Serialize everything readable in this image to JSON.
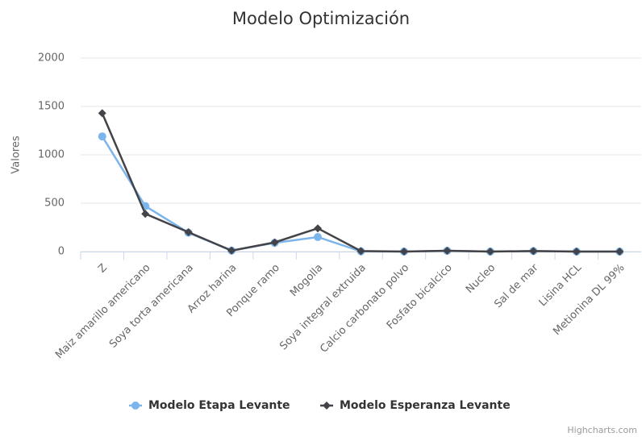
{
  "chart_data": {
    "type": "line",
    "title": "Modelo Optimización",
    "y_label": "Valores",
    "categories": [
      "Z",
      "Maiz amarillo americano",
      "Soya torta americana",
      "Arroz harina",
      "Ponque ramo",
      "Mogolla",
      "Soya integral extruida",
      "Calcio carbonato polvo",
      "Fosfato bicalcico",
      "Nucleo",
      "Sal de mar",
      "Lisina HCL",
      "Metionina DL 99%"
    ],
    "series": [
      {
        "name": "Modelo Etapa Levante",
        "color": "#7cb5ec",
        "marker": "circle",
        "values": [
          1190,
          470,
          195,
          10,
          90,
          150,
          2,
          0,
          8,
          0,
          5,
          0,
          0
        ]
      },
      {
        "name": "Modelo Esperanza Levante",
        "color": "#434348",
        "marker": "diamond",
        "values": [
          1430,
          390,
          200,
          10,
          95,
          240,
          5,
          0,
          8,
          0,
          5,
          0,
          0
        ]
      }
    ],
    "ylim": [
      0,
      2000
    ],
    "yticks": [
      0,
      500,
      1000,
      1500,
      2000
    ],
    "grid": true,
    "legend": "bottom",
    "credits": "Highcharts.com"
  }
}
